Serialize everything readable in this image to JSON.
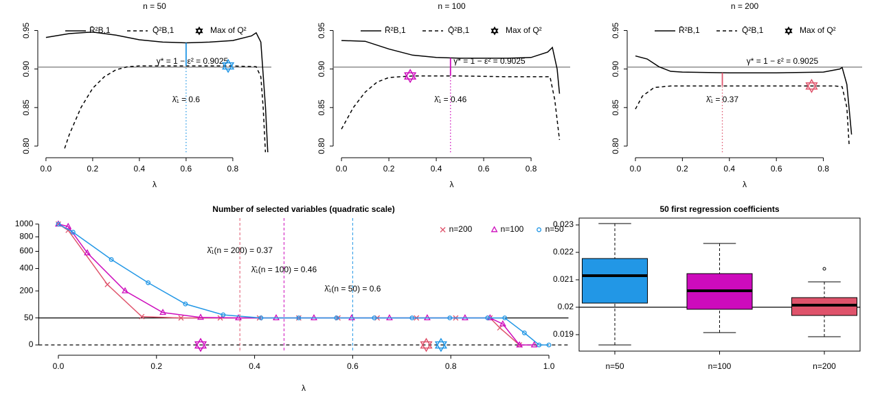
{
  "chart_data": [
    {
      "type": "line",
      "title": "n = 50",
      "xlabel": "λ",
      "xlim": [
        -0.035,
        0.965
      ],
      "ylim": [
        0.792,
        0.97
      ],
      "xticks": [
        {
          "value": 0,
          "label": "0.0"
        },
        0.2,
        0.4,
        0.6,
        0.8
      ],
      "yticks": [
        {
          "value": 0.8,
          "label": "0.80"
        },
        0.85,
        {
          "value": 0.9,
          "label": "0.90"
        },
        0.95
      ],
      "series": [
        {
          "name": "R̄²B,1",
          "color": "#000000",
          "linestyle": "solid",
          "x": [
            0,
            0.1,
            0.2,
            0.3,
            0.4,
            0.5,
            0.6,
            0.7,
            0.8,
            0.88,
            0.9,
            0.92,
            0.94,
            0.95
          ],
          "values": [
            0.941,
            0.946,
            0.948,
            0.944,
            0.938,
            0.935,
            0.934,
            0.935,
            0.937,
            0.943,
            0.947,
            0.935,
            0.85,
            0.79
          ]
        },
        {
          "name": "Q̄²B,1",
          "color": "#000000",
          "linestyle": "dashed",
          "x": [
            0.08,
            0.1,
            0.15,
            0.2,
            0.25,
            0.3,
            0.35,
            0.4,
            0.6,
            0.8,
            0.9,
            0.92,
            0.93,
            0.94
          ],
          "values": [
            0.797,
            0.815,
            0.85,
            0.875,
            0.89,
            0.899,
            0.903,
            0.904,
            0.904,
            0.904,
            0.903,
            0.89,
            0.85,
            0.79
          ]
        }
      ],
      "marker_legend": "Max of Q²",
      "max_q2": {
        "x": 0.78,
        "y": 0.904,
        "color": "#2297e6"
      },
      "hline": {
        "value": 0.9025,
        "label": "γ* = 1 − ε² = 0.9025"
      },
      "lambda_hat": {
        "value": 0.6,
        "label": "λ̂₁ = 0.6",
        "color": "#2297e6"
      }
    },
    {
      "type": "line",
      "title": "n = 100",
      "xlabel": "λ",
      "xlim": [
        -0.035,
        0.965
      ],
      "ylim": [
        0.792,
        0.97
      ],
      "xticks": [
        {
          "value": 0,
          "label": "0.0"
        },
        0.2,
        0.4,
        0.6,
        0.8
      ],
      "yticks": [
        {
          "value": 0.8,
          "label": "0.80"
        },
        0.85,
        {
          "value": 0.9,
          "label": "0.90"
        },
        0.95
      ],
      "series": [
        {
          "name": "R̄²B,1",
          "color": "#000000",
          "linestyle": "solid",
          "x": [
            0,
            0.1,
            0.2,
            0.3,
            0.4,
            0.5,
            0.6,
            0.7,
            0.8,
            0.87,
            0.89,
            0.91,
            0.92
          ],
          "values": [
            0.937,
            0.936,
            0.926,
            0.918,
            0.915,
            0.914,
            0.914,
            0.914,
            0.915,
            0.922,
            0.928,
            0.9,
            0.868
          ]
        },
        {
          "name": "Q̄²B,1",
          "color": "#000000",
          "linestyle": "dashed",
          "x": [
            0,
            0.05,
            0.1,
            0.15,
            0.2,
            0.3,
            0.5,
            0.7,
            0.88,
            0.9,
            0.92
          ],
          "values": [
            0.822,
            0.85,
            0.87,
            0.883,
            0.889,
            0.891,
            0.891,
            0.89,
            0.89,
            0.86,
            0.808
          ]
        }
      ],
      "marker_legend": "Max of Q²",
      "max_q2": {
        "x": 0.29,
        "y": 0.891,
        "color": "#cd0bbc"
      },
      "hline": {
        "value": 0.9025,
        "label": "γ* = 1 − ε² = 0.9025"
      },
      "lambda_hat": {
        "value": 0.46,
        "label": "λ̂₁ = 0.46",
        "color": "#cd0bbc"
      }
    },
    {
      "type": "line",
      "title": "n = 200",
      "xlabel": "λ",
      "xlim": [
        -0.035,
        0.965
      ],
      "ylim": [
        0.792,
        0.97
      ],
      "xticks": [
        {
          "value": 0,
          "label": "0.0"
        },
        0.2,
        0.4,
        0.6,
        0.8
      ],
      "yticks": [
        {
          "value": 0.8,
          "label": "0.80"
        },
        0.85,
        {
          "value": 0.9,
          "label": "0.90"
        },
        0.95
      ],
      "series": [
        {
          "name": "R̄²B,1",
          "color": "#000000",
          "linestyle": "solid",
          "x": [
            0,
            0.05,
            0.1,
            0.15,
            0.2,
            0.4,
            0.6,
            0.8,
            0.87,
            0.88,
            0.9,
            0.92
          ],
          "values": [
            0.917,
            0.913,
            0.903,
            0.897,
            0.896,
            0.895,
            0.895,
            0.896,
            0.9,
            0.902,
            0.88,
            0.815
          ]
        },
        {
          "name": "Q̄²B,1",
          "color": "#000000",
          "linestyle": "dashed",
          "x": [
            0,
            0.03,
            0.08,
            0.15,
            0.5,
            0.85,
            0.88,
            0.9,
            0.91
          ],
          "values": [
            0.848,
            0.865,
            0.876,
            0.878,
            0.878,
            0.878,
            0.877,
            0.85,
            0.8
          ]
        }
      ],
      "marker_legend": "Max of Q²",
      "max_q2": {
        "x": 0.75,
        "y": 0.878,
        "color": "#df536b"
      },
      "hline": {
        "value": 0.9025,
        "label": "γ* = 1 − ε² = 0.9025"
      },
      "lambda_hat": {
        "value": 0.37,
        "label": "λ̂₁ = 0.37",
        "color": "#df536b"
      }
    },
    {
      "type": "line",
      "title": "Number of selected variables (quadratic scale)",
      "xlabel": "λ",
      "yscale": "sqrt",
      "legend": "topright",
      "xlim": [
        -0.04,
        1.04
      ],
      "ylim": [
        -2.6,
        1102
      ],
      "xticks": [
        {
          "value": 0,
          "label": "0.0"
        },
        0.2,
        0.4,
        0.6,
        0.8,
        {
          "value": 1,
          "label": "1.0"
        }
      ],
      "yticks": [
        0,
        50,
        200,
        400,
        600,
        800,
        1000
      ],
      "series": [
        {
          "name": "n=200",
          "color": "#df536b",
          "marker": "x",
          "x": [
            0,
            0.02,
            0.1,
            0.17,
            0.25,
            0.33,
            0.41,
            0.49,
            0.57,
            0.65,
            0.73,
            0.81,
            0.88,
            0.9,
            0.94
          ],
          "values": [
            1000,
            900,
            250,
            55,
            50,
            50,
            50,
            50,
            50,
            50,
            50,
            50,
            50,
            20,
            0
          ]
        },
        {
          "name": "n=100",
          "color": "#cd0bbc",
          "marker": "triangle",
          "x": [
            0,
            0.02,
            0.059,
            0.136,
            0.213,
            0.29,
            0.367,
            0.444,
            0.521,
            0.598,
            0.675,
            0.752,
            0.829,
            0.88,
            0.906,
            0.94,
            0.97
          ],
          "values": [
            1000,
            960,
            580,
            200,
            72,
            52,
            50,
            50,
            50,
            50,
            50,
            50,
            50,
            50,
            30,
            0,
            0
          ]
        },
        {
          "name": "n=50",
          "color": "#2297e6",
          "marker": "circle",
          "x": [
            0,
            0.03,
            0.108,
            0.183,
            0.259,
            0.336,
            0.413,
            0.49,
            0.567,
            0.644,
            0.721,
            0.798,
            0.875,
            0.91,
            0.95,
            0.98,
            1.0
          ],
          "values": [
            1000,
            870,
            500,
            265,
            115,
            62,
            50,
            50,
            50,
            50,
            50,
            50,
            50,
            50,
            10,
            0,
            0
          ]
        }
      ],
      "hlines": [
        {
          "value": 50,
          "linestyle": "solid"
        },
        {
          "value": 0,
          "linestyle": "dashed"
        }
      ],
      "lambda_hats": [
        {
          "value": 0.37,
          "label": "λ̂₁(n = 200) = 0.37",
          "color": "#df536b"
        },
        {
          "value": 0.46,
          "label": "λ̂₁(n = 100) = 0.46",
          "color": "#cd0bbc"
        },
        {
          "value": 0.6,
          "label": "λ̂₁(n = 50) = 0.6",
          "color": "#2297e6"
        }
      ],
      "max_q2": [
        {
          "x": 0.29,
          "y": 0,
          "color": "#cd0bbc"
        },
        {
          "x": 0.75,
          "y": 0,
          "color": "#df536b"
        },
        {
          "x": 0.78,
          "y": 0,
          "color": "#2297e6"
        }
      ]
    },
    {
      "type": "box",
      "title": "50 first regression coefficients",
      "categories": [
        "n=50",
        "n=100",
        "n=200"
      ],
      "colors": [
        "#2297e6",
        "#cd0bbc",
        "#df536b"
      ],
      "ylim": [
        0.0184,
        0.02325
      ],
      "yticks": [
        0.019,
        0.02,
        0.021,
        0.022,
        0.023
      ],
      "hline": 0.02,
      "boxes": [
        {
          "min": 0.018625,
          "q1": 0.02015,
          "median": 0.02115,
          "q3": 0.021775,
          "max": 0.02305
        },
        {
          "min": 0.019075,
          "q1": 0.019925,
          "median": 0.0206,
          "q3": 0.021225,
          "max": 0.022325
        },
        {
          "min": 0.018925,
          "q1": 0.0197,
          "median": 0.020075,
          "q3": 0.02035,
          "max": 0.020925,
          "outliers": [
            0.0214
          ]
        }
      ]
    }
  ]
}
